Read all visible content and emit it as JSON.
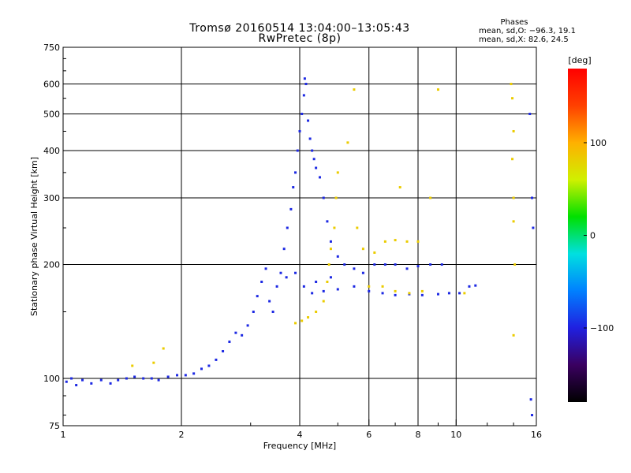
{
  "chart_data": {
    "type": "scatter",
    "title": "Tromsø 20160514 13:04:00–13:05:43",
    "subtitle": "RwPretec (8p)",
    "xlabel": "Frequency [MHz]",
    "ylabel": "Stationary phase Virtual Height [km]",
    "xscale": "log",
    "yscale": "log",
    "xlim": [
      1,
      16
    ],
    "ylim": [
      75,
      750
    ],
    "x_ticks": [
      1,
      2,
      4,
      6,
      8,
      10,
      16
    ],
    "x_tick_labels": [
      "1",
      "2",
      "4",
      "6",
      "8",
      "10",
      "16"
    ],
    "x_minor_ticks": [
      3,
      5,
      7,
      9,
      12,
      14
    ],
    "y_ticks": [
      75,
      100,
      200,
      300,
      400,
      500,
      600,
      750
    ],
    "y_tick_labels": [
      "75",
      "100",
      "200",
      "300",
      "400",
      "500",
      "600",
      "750"
    ],
    "y_minor_ticks": [
      80,
      90,
      150,
      250,
      350,
      450,
      550,
      650,
      700
    ],
    "grid": true,
    "phases_legend": {
      "heading": "Phases",
      "line1": "mean, sd,O: −96.3, 19.1",
      "line2": "mean, sd,X: 82.6, 24.5"
    },
    "colorbar": {
      "label": "[deg]",
      "range": [
        -180,
        180
      ],
      "ticks": [
        100,
        0,
        -100
      ],
      "tick_labels": [
        "100",
        "0",
        "−100"
      ],
      "colors": [
        "#000000",
        "#3a0060",
        "#2020e0",
        "#0080ff",
        "#00e0e0",
        "#00e000",
        "#d0f000",
        "#ffb000",
        "#ff4000",
        "#ff0000"
      ]
    },
    "series": [
      {
        "name": "O",
        "mean_phase": -96.3,
        "points": [
          [
            1.02,
            98
          ],
          [
            1.05,
            100
          ],
          [
            1.08,
            96
          ],
          [
            1.12,
            99
          ],
          [
            1.18,
            97
          ],
          [
            1.25,
            99
          ],
          [
            1.32,
            97
          ],
          [
            1.38,
            99
          ],
          [
            1.45,
            100
          ],
          [
            1.52,
            101
          ],
          [
            1.6,
            100
          ],
          [
            1.68,
            100
          ],
          [
            1.75,
            99
          ],
          [
            1.85,
            101
          ],
          [
            1.95,
            102
          ],
          [
            2.05,
            102
          ],
          [
            2.15,
            103
          ],
          [
            2.25,
            106
          ],
          [
            2.35,
            108
          ],
          [
            2.45,
            112
          ],
          [
            2.55,
            118
          ],
          [
            2.65,
            125
          ],
          [
            2.75,
            132
          ],
          [
            2.85,
            130
          ],
          [
            2.95,
            138
          ],
          [
            3.05,
            150
          ],
          [
            3.12,
            165
          ],
          [
            3.2,
            180
          ],
          [
            3.28,
            195
          ],
          [
            3.35,
            160
          ],
          [
            3.42,
            150
          ],
          [
            3.5,
            175
          ],
          [
            3.58,
            190
          ],
          [
            3.65,
            220
          ],
          [
            3.72,
            250
          ],
          [
            3.8,
            280
          ],
          [
            3.85,
            320
          ],
          [
            3.9,
            350
          ],
          [
            3.95,
            400
          ],
          [
            4.0,
            450
          ],
          [
            4.05,
            500
          ],
          [
            4.1,
            560
          ],
          [
            4.12,
            620
          ],
          [
            4.15,
            600
          ],
          [
            4.2,
            480
          ],
          [
            4.25,
            430
          ],
          [
            4.3,
            400
          ],
          [
            4.35,
            380
          ],
          [
            4.4,
            360
          ],
          [
            4.5,
            340
          ],
          [
            4.6,
            300
          ],
          [
            4.7,
            260
          ],
          [
            4.8,
            230
          ],
          [
            5.0,
            210
          ],
          [
            5.2,
            200
          ],
          [
            5.5,
            195
          ],
          [
            5.8,
            190
          ],
          [
            6.2,
            200
          ],
          [
            6.6,
            200
          ],
          [
            7.0,
            200
          ],
          [
            7.5,
            195
          ],
          [
            8.0,
            198
          ],
          [
            8.6,
            200
          ],
          [
            9.2,
            200
          ],
          [
            4.3,
            168
          ],
          [
            4.6,
            170
          ],
          [
            5.0,
            172
          ],
          [
            5.5,
            175
          ],
          [
            6.0,
            170
          ],
          [
            6.5,
            168
          ],
          [
            7.0,
            166
          ],
          [
            7.6,
            167
          ],
          [
            8.2,
            166
          ],
          [
            9.0,
            167
          ],
          [
            9.6,
            168
          ],
          [
            10.2,
            168
          ],
          [
            10.8,
            175
          ],
          [
            11.2,
            176
          ],
          [
            3.7,
            185
          ],
          [
            3.9,
            190
          ],
          [
            4.1,
            175
          ],
          [
            4.4,
            180
          ],
          [
            4.8,
            185
          ],
          [
            15.4,
            500
          ],
          [
            15.6,
            300
          ],
          [
            15.7,
            250
          ],
          [
            15.5,
            88
          ],
          [
            15.6,
            80
          ]
        ]
      },
      {
        "name": "X",
        "mean_phase": 82.6,
        "points": [
          [
            3.9,
            140
          ],
          [
            4.05,
            142
          ],
          [
            4.2,
            145
          ],
          [
            4.4,
            150
          ],
          [
            4.6,
            160
          ],
          [
            4.7,
            180
          ],
          [
            4.75,
            200
          ],
          [
            4.8,
            220
          ],
          [
            4.9,
            250
          ],
          [
            4.95,
            300
          ],
          [
            5.0,
            350
          ],
          [
            5.3,
            420
          ],
          [
            5.5,
            580
          ],
          [
            5.6,
            250
          ],
          [
            5.8,
            220
          ],
          [
            6.2,
            215
          ],
          [
            6.6,
            230
          ],
          [
            7.0,
            232
          ],
          [
            7.5,
            230
          ],
          [
            8.0,
            230
          ],
          [
            7.2,
            320
          ],
          [
            8.6,
            300
          ],
          [
            9.0,
            580
          ],
          [
            6.0,
            175
          ],
          [
            6.5,
            175
          ],
          [
            7.0,
            170
          ],
          [
            7.6,
            168
          ],
          [
            8.2,
            170
          ],
          [
            10.5,
            168
          ],
          [
            13.8,
            600
          ],
          [
            13.9,
            550
          ],
          [
            14.0,
            450
          ],
          [
            13.9,
            380
          ],
          [
            14.0,
            300
          ],
          [
            14.0,
            260
          ],
          [
            14.1,
            200
          ],
          [
            14.0,
            130
          ],
          [
            1.7,
            110
          ],
          [
            1.8,
            120
          ],
          [
            1.5,
            108
          ]
        ]
      }
    ]
  }
}
